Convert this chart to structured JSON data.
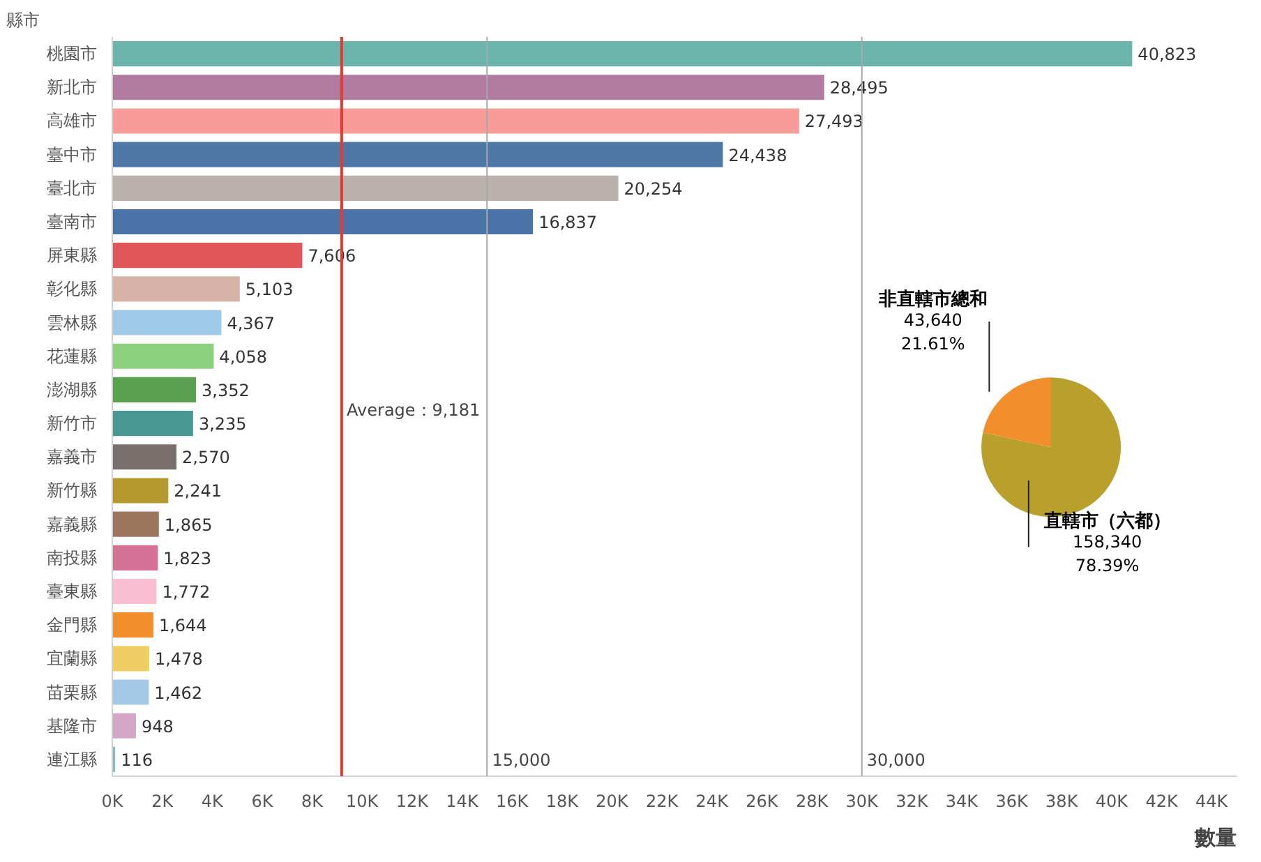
{
  "chart_data": [
    {
      "type": "bar",
      "orientation": "horizontal",
      "ylabel": "縣市",
      "xlabel": "數量",
      "categories": [
        "桃園市",
        "新北市",
        "高雄市",
        "臺中市",
        "臺北市",
        "臺南市",
        "屏東縣",
        "彰化縣",
        "雲林縣",
        "花蓮縣",
        "澎湖縣",
        "新竹市",
        "嘉義市",
        "新竹縣",
        "嘉義縣",
        "南投縣",
        "臺東縣",
        "金門縣",
        "宜蘭縣",
        "苗栗縣",
        "基隆市",
        "連江縣"
      ],
      "values": [
        40823,
        28495,
        27493,
        24438,
        20254,
        16837,
        7606,
        5103,
        4367,
        4058,
        3352,
        3235,
        2570,
        2241,
        1865,
        1823,
        1772,
        1644,
        1478,
        1462,
        948,
        116
      ],
      "colors": [
        "#6cb5ac",
        "#b07aa1",
        "#f79c99",
        "#4e79a7",
        "#bab0ac",
        "#4a74a8",
        "#e15759",
        "#d7b2a6",
        "#a0cbe8",
        "#8cd17d",
        "#59a14f",
        "#499894",
        "#79706e",
        "#b6992d",
        "#9d7660",
        "#d37295",
        "#fabfd2",
        "#f28e2b",
        "#f1ce63",
        "#a3c9e6",
        "#d4a6c8",
        "#86bcb6"
      ],
      "value_labels": [
        "40,823",
        "28,495",
        "27,493",
        "24,438",
        "20,254",
        "16,837",
        "7,606",
        "5,103",
        "4,367",
        "4,058",
        "3,352",
        "3,235",
        "2,570",
        "2,241",
        "1,865",
        "1,823",
        "1,772",
        "1,644",
        "1,478",
        "1,462",
        "948",
        "116"
      ],
      "xlim": [
        0,
        45000
      ],
      "xticks": [
        {
          "value": 0,
          "label": "0K"
        },
        {
          "value": 2000,
          "label": "2K"
        },
        {
          "value": 4000,
          "label": "4K"
        },
        {
          "value": 6000,
          "label": "6K"
        },
        {
          "value": 8000,
          "label": "8K"
        },
        {
          "value": 10000,
          "label": "10K"
        },
        {
          "value": 12000,
          "label": "12K"
        },
        {
          "value": 14000,
          "label": "14K"
        },
        {
          "value": 16000,
          "label": "16K"
        },
        {
          "value": 18000,
          "label": "18K"
        },
        {
          "value": 20000,
          "label": "20K"
        },
        {
          "value": 22000,
          "label": "22K"
        },
        {
          "value": 24000,
          "label": "24K"
        },
        {
          "value": 26000,
          "label": "26K"
        },
        {
          "value": 28000,
          "label": "28K"
        },
        {
          "value": 30000,
          "label": "30K"
        },
        {
          "value": 32000,
          "label": "32K"
        },
        {
          "value": 34000,
          "label": "34K"
        },
        {
          "value": 36000,
          "label": "36K"
        },
        {
          "value": 38000,
          "label": "38K"
        },
        {
          "value": 40000,
          "label": "40K"
        },
        {
          "value": 42000,
          "label": "42K"
        },
        {
          "value": 44000,
          "label": "44K"
        }
      ],
      "ref_lines": [
        {
          "axis": "x",
          "value": 9181,
          "label": "Average：9,181",
          "color": "#e03c31"
        },
        {
          "axis": "x",
          "value": 15000,
          "label": "15,000",
          "color": "#a8a8a8"
        },
        {
          "axis": "x",
          "value": 30000,
          "label": "30,000",
          "color": "#a8a8a8"
        }
      ],
      "grid": false
    },
    {
      "type": "pie",
      "categories": [
        "非直轄市總和",
        "直轄市（六都）"
      ],
      "values": [
        43640,
        158340
      ],
      "colors": [
        "#f28e2b",
        "#b9a02c"
      ],
      "value_labels": [
        "43,640\n21.61%",
        "158,340\n78.39%"
      ]
    }
  ]
}
